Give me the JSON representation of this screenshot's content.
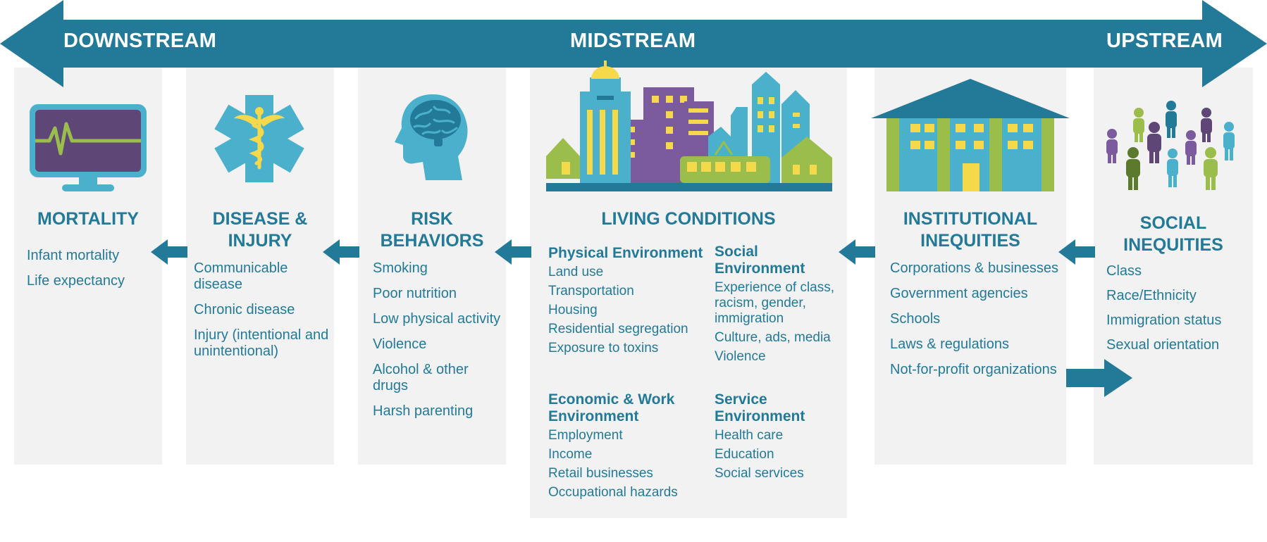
{
  "band": {
    "downstream": "DOWNSTREAM",
    "midstream": "MIDSTREAM",
    "upstream": "UPSTREAM"
  },
  "mortality": {
    "title": "MORTALITY",
    "items": [
      "Infant mortality",
      "Life expectancy"
    ]
  },
  "disease": {
    "title": "DISEASE & INJURY",
    "items": [
      "Communicable disease",
      "Chronic disease",
      "Injury (intentional and unintentional)"
    ]
  },
  "risk": {
    "title": "RISK BEHAVIORS",
    "items": [
      "Smoking",
      "Poor nutrition",
      "Low physical activity",
      "Violence",
      "Alcohol & other drugs",
      "Harsh parenting"
    ]
  },
  "living": {
    "title": "LIVING CONDITIONS",
    "physical": {
      "heading": "Physical Environment",
      "items": [
        "Land use",
        "Transportation",
        "Housing",
        "Residential segregation",
        "Exposure to toxins"
      ]
    },
    "social": {
      "heading": "Social Environment",
      "items": [
        "Experience of class, racism, gender, immigration",
        "Culture, ads, media",
        "Violence"
      ]
    },
    "economic": {
      "heading": "Economic & Work Environment",
      "items": [
        "Employment",
        "Income",
        "Retail businesses",
        "Occupational hazards"
      ]
    },
    "service": {
      "heading": "Service Environment",
      "items": [
        "Health care",
        "Education",
        "Social services"
      ]
    }
  },
  "institutional": {
    "title": "INSTITUTIONAL INEQUITIES",
    "items": [
      "Corporations & businesses",
      "Government agencies",
      "Schools",
      "Laws & regulations",
      "Not-for-profit organizations"
    ]
  },
  "social": {
    "title": "SOCIAL INEQUITIES",
    "items": [
      "Class",
      "Race/Ethnicity",
      "Immigration status",
      "Sexual orientation"
    ]
  },
  "icons": {
    "mortality": "heart-monitor-icon",
    "disease": "medical-star-of-life-icon",
    "risk": "head-brain-icon",
    "living": "city-skyline-icon",
    "institutional": "institution-building-icon",
    "social": "people-group-icon"
  },
  "colors": {
    "teal_dark": "#227a98",
    "teal_light": "#4bb0cc",
    "purple": "#7c5a9e",
    "purple_dark": "#5a3f7a",
    "green": "#9bbd4b",
    "yellow": "#f5d94a",
    "panel": "#f2f2f2"
  }
}
